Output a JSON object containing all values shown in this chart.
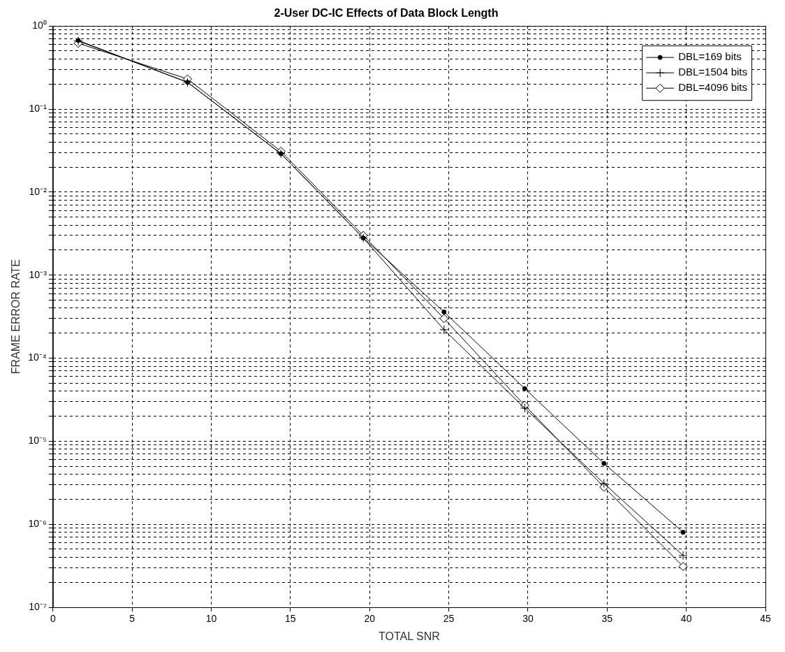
{
  "chart_data": {
    "type": "line",
    "title": "2-User DC-IC Effects of Data Block Length",
    "xlabel": "TOTAL SNR",
    "ylabel": "FRAME ERROR RATE",
    "log": "y",
    "grid": true,
    "legend": "top right",
    "line_style": "solid",
    "x": [
      1.6,
      8.5,
      14.4,
      19.6,
      24.7,
      29.8,
      34.8,
      39.8
    ],
    "series": [
      {
        "name": "DBL=169 bits",
        "color": "#000000",
        "marker": "circle",
        "values": [
          0.67,
          0.21,
          0.029,
          0.0028,
          0.00036,
          4.3e-05,
          5.4e-06,
          8e-07
        ]
      },
      {
        "name": "DBL=1504 bits",
        "color": "#000000",
        "marker": "cross",
        "values": [
          0.66,
          0.21,
          0.029,
          0.0028,
          0.00022,
          2.5e-05,
          3.1e-06,
          4.2e-07
        ]
      },
      {
        "name": "DBL=4096 bits",
        "color": "#000000",
        "marker": "diamond",
        "values": [
          0.62,
          0.23,
          0.031,
          0.003,
          0.0003,
          2.7e-05,
          2.8e-06,
          3.1e-07
        ]
      }
    ],
    "xlim": [
      0,
      45
    ],
    "xticks": [
      0,
      5,
      10,
      15,
      20,
      25,
      30,
      35,
      40,
      45
    ],
    "ylim": [
      1e-07,
      1
    ],
    "yticks": [
      {
        "value": 1e-07,
        "label": "10⁻⁷"
      },
      {
        "value": 2e-07,
        "label": null
      },
      {
        "value": 3e-07,
        "label": null
      },
      {
        "value": 4e-07,
        "label": null
      },
      {
        "value": 5e-07,
        "label": null
      },
      {
        "value": 6e-07,
        "label": null
      },
      {
        "value": 7e-07,
        "label": null
      },
      {
        "value": 8e-07,
        "label": null
      },
      {
        "value": 9e-07,
        "label": null
      },
      {
        "value": 1e-06,
        "label": "10⁻⁶"
      },
      {
        "value": 2e-06,
        "label": null
      },
      {
        "value": 3e-06,
        "label": null
      },
      {
        "value": 4e-06,
        "label": null
      },
      {
        "value": 5e-06,
        "label": null
      },
      {
        "value": 6e-06,
        "label": null
      },
      {
        "value": 7e-06,
        "label": null
      },
      {
        "value": 8e-06,
        "label": null
      },
      {
        "value": 9e-06,
        "label": null
      },
      {
        "value": 1e-05,
        "label": "10⁻⁵"
      },
      {
        "value": 2e-05,
        "label": null
      },
      {
        "value": 3e-05,
        "label": null
      },
      {
        "value": 4e-05,
        "label": null
      },
      {
        "value": 5e-05,
        "label": null
      },
      {
        "value": 6e-05,
        "label": null
      },
      {
        "value": 7e-05,
        "label": null
      },
      {
        "value": 8e-05,
        "label": null
      },
      {
        "value": 9e-05,
        "label": null
      },
      {
        "value": 0.0001,
        "label": "10⁻⁴"
      },
      {
        "value": 0.0002,
        "label": null
      },
      {
        "value": 0.0003,
        "label": null
      },
      {
        "value": 0.0004,
        "label": null
      },
      {
        "value": 0.0005,
        "label": null
      },
      {
        "value": 0.0006,
        "label": null
      },
      {
        "value": 0.0007,
        "label": null
      },
      {
        "value": 0.0008,
        "label": null
      },
      {
        "value": 0.0009,
        "label": null
      },
      {
        "value": 0.001,
        "label": "10⁻³"
      },
      {
        "value": 0.002,
        "label": null
      },
      {
        "value": 0.003,
        "label": null
      },
      {
        "value": 0.004,
        "label": null
      },
      {
        "value": 0.005,
        "label": null
      },
      {
        "value": 0.006,
        "label": null
      },
      {
        "value": 0.007,
        "label": null
      },
      {
        "value": 0.008,
        "label": null
      },
      {
        "value": 0.009,
        "label": null
      },
      {
        "value": 0.01,
        "label": "10⁻²"
      },
      {
        "value": 0.02,
        "label": null
      },
      {
        "value": 0.03,
        "label": null
      },
      {
        "value": 0.04,
        "label": null
      },
      {
        "value": 0.05,
        "label": null
      },
      {
        "value": 0.06,
        "label": null
      },
      {
        "value": 0.07,
        "label": null
      },
      {
        "value": 0.08,
        "label": null
      },
      {
        "value": 0.09,
        "label": null
      },
      {
        "value": 0.1,
        "label": "10⁻¹"
      },
      {
        "value": 0.2,
        "label": null
      },
      {
        "value": 0.3,
        "label": null
      },
      {
        "value": 0.4,
        "label": null
      },
      {
        "value": 0.5,
        "label": null
      },
      {
        "value": 0.6,
        "label": null
      },
      {
        "value": 0.7,
        "label": null
      },
      {
        "value": 0.8,
        "label": null
      },
      {
        "value": 0.9,
        "label": null
      },
      {
        "value": 1,
        "label": "10⁰"
      }
    ]
  }
}
